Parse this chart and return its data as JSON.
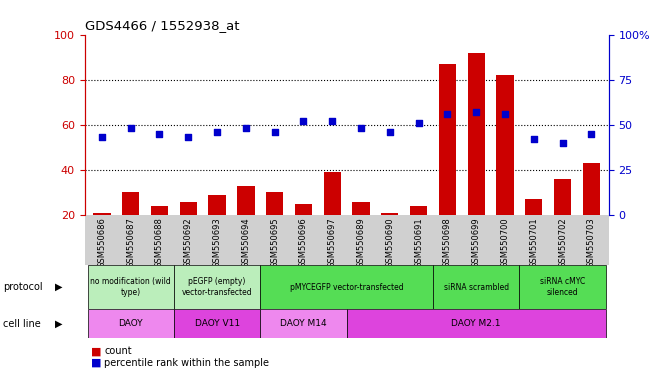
{
  "title": "GDS4466 / 1552938_at",
  "samples": [
    "GSM550686",
    "GSM550687",
    "GSM550688",
    "GSM550692",
    "GSM550693",
    "GSM550694",
    "GSM550695",
    "GSM550696",
    "GSM550697",
    "GSM550689",
    "GSM550690",
    "GSM550691",
    "GSM550698",
    "GSM550699",
    "GSM550700",
    "GSM550701",
    "GSM550702",
    "GSM550703"
  ],
  "bar_values": [
    21,
    30,
    24,
    26,
    29,
    33,
    30,
    25,
    39,
    26,
    21,
    24,
    87,
    92,
    82,
    27,
    36,
    43
  ],
  "dot_values_pct": [
    43,
    48,
    45,
    43,
    46,
    48,
    46,
    52,
    52,
    48,
    46,
    51,
    56,
    57,
    56,
    42,
    40,
    45
  ],
  "bar_color": "#cc0000",
  "dot_color": "#0000cc",
  "ylim_left": [
    20,
    100
  ],
  "ylim_right": [
    0,
    100
  ],
  "yticks_left": [
    20,
    40,
    60,
    80,
    100
  ],
  "yticks_right": [
    0,
    25,
    50,
    75,
    100
  ],
  "ytick_labels_right": [
    "0",
    "25",
    "50",
    "75",
    "100%"
  ],
  "hlines": [
    40,
    60,
    80
  ],
  "proto_groups": [
    {
      "text": "no modification (wild\ntype)",
      "start": 0,
      "end": 3,
      "color": "#bbeebb"
    },
    {
      "text": "pEGFP (empty)\nvector-transfected",
      "start": 3,
      "end": 6,
      "color": "#bbeebb"
    },
    {
      "text": "pMYCEGFP vector-transfected",
      "start": 6,
      "end": 12,
      "color": "#55dd55"
    },
    {
      "text": "siRNA scrambled",
      "start": 12,
      "end": 15,
      "color": "#55dd55"
    },
    {
      "text": "siRNA cMYC\nsilenced",
      "start": 15,
      "end": 18,
      "color": "#55dd55"
    }
  ],
  "cell_groups": [
    {
      "text": "DAOY",
      "start": 0,
      "end": 3,
      "color": "#ee88ee"
    },
    {
      "text": "DAOY V11",
      "start": 3,
      "end": 6,
      "color": "#dd44dd"
    },
    {
      "text": "DAOY M14",
      "start": 6,
      "end": 9,
      "color": "#ee88ee"
    },
    {
      "text": "DAOY M2.1",
      "start": 9,
      "end": 18,
      "color": "#dd44dd"
    }
  ],
  "legend_count_color": "#cc0000",
  "legend_dot_color": "#0000cc",
  "xticklabel_bg": "#d0d0d0"
}
